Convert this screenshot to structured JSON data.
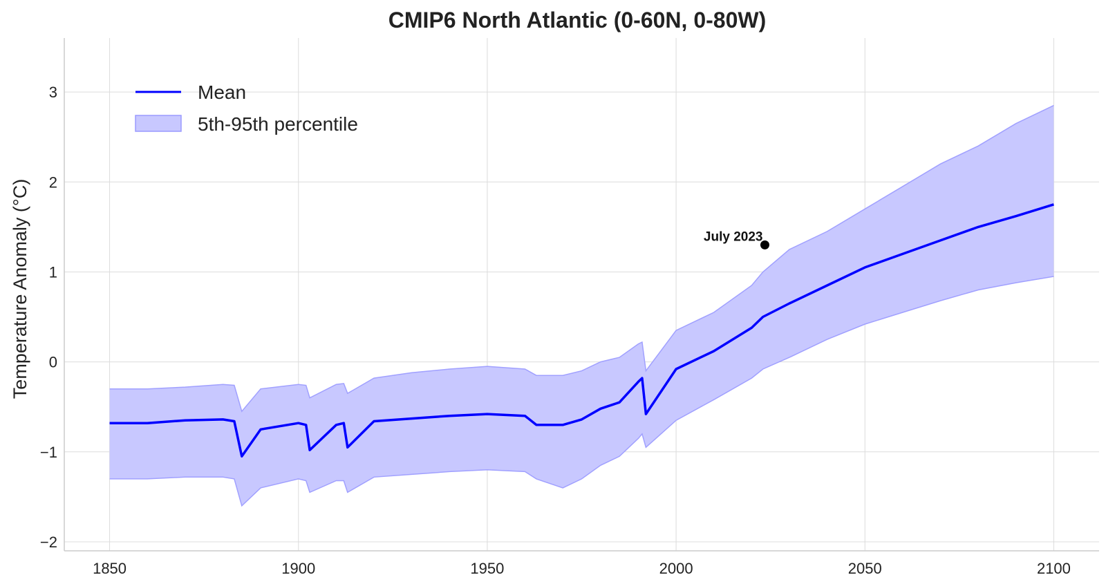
{
  "chart_data": {
    "type": "line",
    "title": "CMIP6 North Atlantic (0-60N, 0-80W)",
    "xlabel": "",
    "ylabel": "Temperature Anomaly (°C)",
    "xlim": [
      1838,
      2112
    ],
    "ylim": [
      -2.1,
      3.6
    ],
    "xticks": [
      1850,
      1900,
      1950,
      2000,
      2050,
      2100
    ],
    "yticks": [
      -2,
      -1,
      0,
      1,
      2,
      3
    ],
    "ytick_labels": [
      "−2",
      "−1",
      "0",
      "1",
      "2",
      "3"
    ],
    "grid": true,
    "legend_position": "top-left",
    "x": [
      1850,
      1860,
      1870,
      1880,
      1883,
      1885,
      1890,
      1900,
      1902,
      1903,
      1910,
      1912,
      1913,
      1920,
      1930,
      1940,
      1950,
      1960,
      1963,
      1970,
      1975,
      1980,
      1985,
      1990,
      1991,
      1992,
      2000,
      2010,
      2020,
      2023,
      2030,
      2040,
      2050,
      2060,
      2070,
      2080,
      2090,
      2100
    ],
    "series": [
      {
        "name": "Mean",
        "color": "#0000ff",
        "values": [
          -0.68,
          -0.68,
          -0.65,
          -0.64,
          -0.66,
          -1.05,
          -0.75,
          -0.68,
          -0.7,
          -0.98,
          -0.7,
          -0.68,
          -0.95,
          -0.66,
          -0.63,
          -0.6,
          -0.58,
          -0.6,
          -0.7,
          -0.7,
          -0.64,
          -0.52,
          -0.45,
          -0.22,
          -0.18,
          -0.58,
          -0.08,
          0.12,
          0.38,
          0.5,
          0.65,
          0.85,
          1.05,
          1.2,
          1.35,
          1.5,
          1.62,
          1.75
        ]
      },
      {
        "name": "5th-95th percentile",
        "color": "#c8c8ff",
        "lower": [
          -1.3,
          -1.3,
          -1.28,
          -1.28,
          -1.3,
          -1.6,
          -1.4,
          -1.3,
          -1.32,
          -1.45,
          -1.32,
          -1.32,
          -1.45,
          -1.28,
          -1.25,
          -1.22,
          -1.2,
          -1.22,
          -1.3,
          -1.4,
          -1.3,
          -1.15,
          -1.05,
          -0.85,
          -0.8,
          -0.95,
          -0.65,
          -0.42,
          -0.18,
          -0.08,
          0.05,
          0.25,
          0.42,
          0.55,
          0.68,
          0.8,
          0.88,
          0.95
        ],
        "upper": [
          -0.3,
          -0.3,
          -0.28,
          -0.25,
          -0.26,
          -0.55,
          -0.3,
          -0.25,
          -0.26,
          -0.4,
          -0.25,
          -0.24,
          -0.35,
          -0.18,
          -0.12,
          -0.08,
          -0.05,
          -0.08,
          -0.15,
          -0.15,
          -0.1,
          0.0,
          0.05,
          0.2,
          0.22,
          -0.1,
          0.35,
          0.55,
          0.85,
          1.0,
          1.25,
          1.45,
          1.7,
          1.95,
          2.2,
          2.4,
          2.65,
          2.85
        ]
      }
    ],
    "annotations": [
      {
        "label": "July 2023",
        "x": 2023.5,
        "y": 1.3
      }
    ]
  }
}
